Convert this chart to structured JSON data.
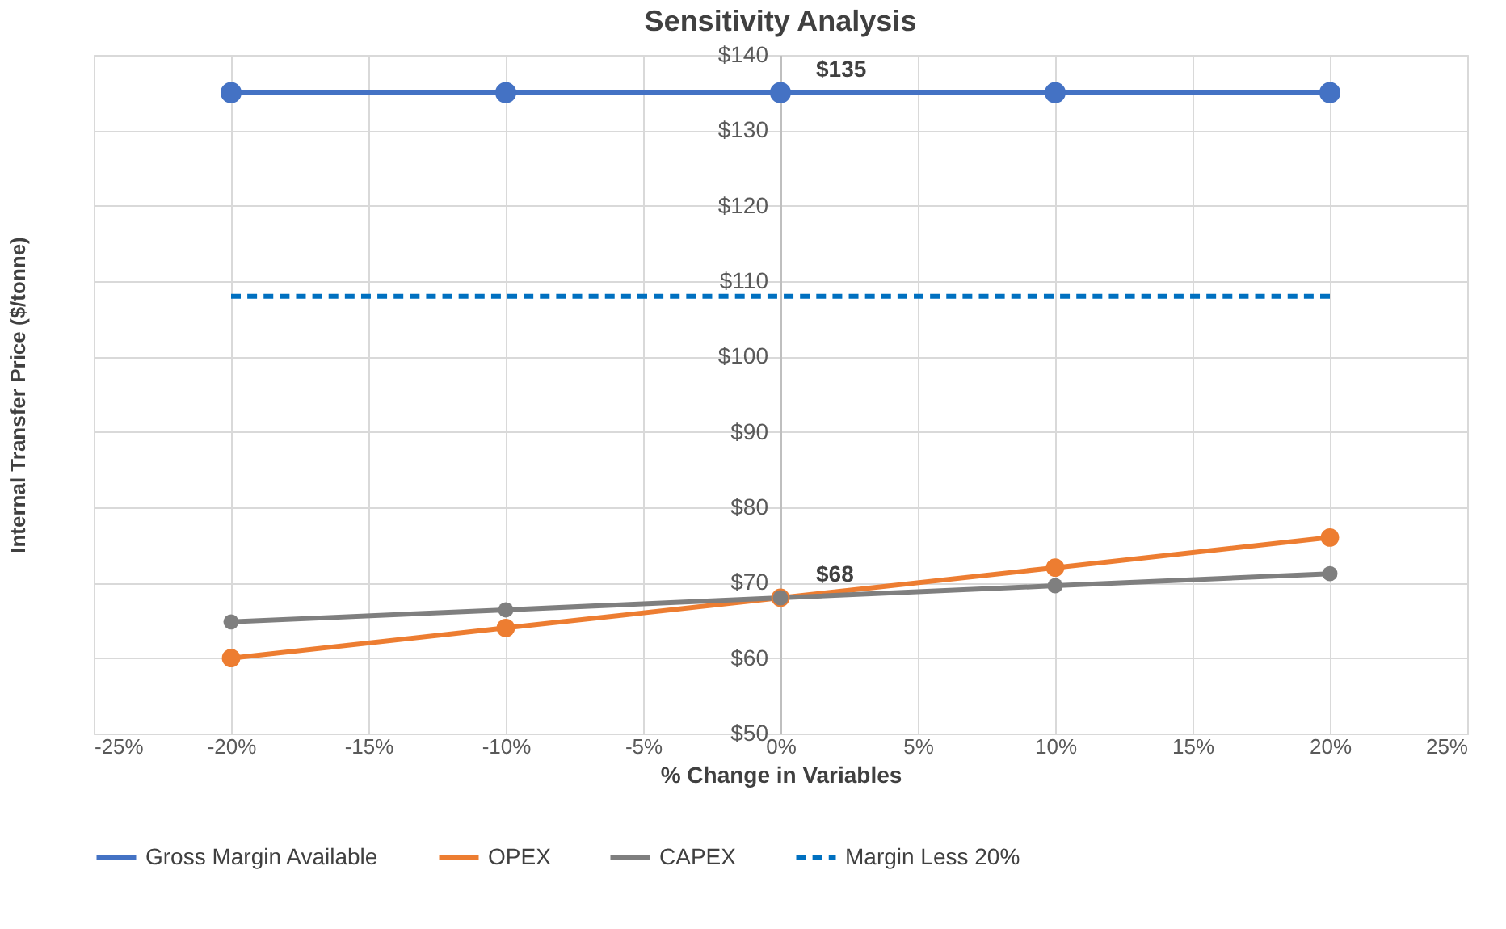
{
  "chart_data": {
    "type": "line",
    "title": "Sensitivity Analysis",
    "xlabel": "% Change in Variables",
    "ylabel": "Internal Transfer Price ($/tonne)",
    "x": [
      -20,
      -10,
      0,
      10,
      20
    ],
    "series": [
      {
        "name": "Gross Margin Available",
        "color": "#4472c4",
        "values": [
          135,
          135,
          135,
          135,
          135
        ],
        "marker": "circle",
        "line_style": "solid"
      },
      {
        "name": "OPEX",
        "color": "#ed7d31",
        "values": [
          60,
          64,
          68,
          72,
          76
        ],
        "marker": "circle",
        "line_style": "solid"
      },
      {
        "name": "CAPEX",
        "color": "#7f7f7f",
        "values": [
          64.8,
          66.4,
          68,
          69.6,
          71.2
        ],
        "marker": "circle",
        "line_style": "solid"
      },
      {
        "name": "Margin Less 20%",
        "color": "#0070c0",
        "values": [
          108,
          108,
          108,
          108,
          108
        ],
        "marker": "none",
        "line_style": "dashed"
      }
    ],
    "xlim": [
      -25,
      25
    ],
    "xticks": [
      {
        "value": -25,
        "label": "-25%"
      },
      {
        "value": -20,
        "label": "-20%"
      },
      {
        "value": -15,
        "label": "-15%"
      },
      {
        "value": -10,
        "label": "-10%"
      },
      {
        "value": -5,
        "label": "-5%"
      },
      {
        "value": 0,
        "label": "0%"
      },
      {
        "value": 5,
        "label": "5%"
      },
      {
        "value": 10,
        "label": "10%"
      },
      {
        "value": 15,
        "label": "15%"
      },
      {
        "value": 20,
        "label": "20%"
      },
      {
        "value": 25,
        "label": "25%"
      }
    ],
    "ylim": [
      50,
      140
    ],
    "yticks": [
      {
        "value": 50,
        "label": "$50"
      },
      {
        "value": 60,
        "label": "$60"
      },
      {
        "value": 70,
        "label": "$70"
      },
      {
        "value": 80,
        "label": "$80"
      },
      {
        "value": 90,
        "label": "$90"
      },
      {
        "value": 100,
        "label": "$100"
      },
      {
        "value": 110,
        "label": "$110"
      },
      {
        "value": 120,
        "label": "$120"
      },
      {
        "value": 130,
        "label": "$130"
      },
      {
        "value": 140,
        "label": "$140"
      }
    ],
    "annotations": [
      {
        "text": "$135",
        "x": 0,
        "y": 135
      },
      {
        "text": "$68",
        "x": 0,
        "y": 68
      }
    ],
    "grid": true,
    "legend": "bottom"
  }
}
